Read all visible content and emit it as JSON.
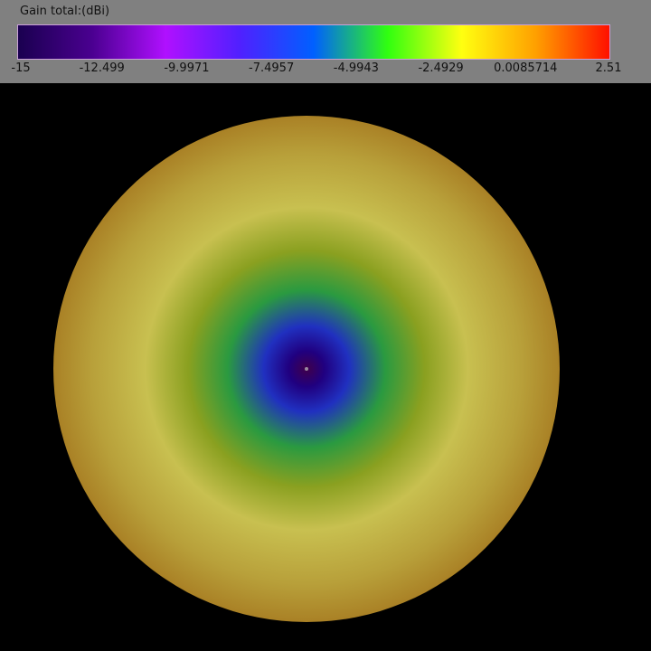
{
  "chart_data": {
    "type": "heatmap",
    "title": "Gain total:(dBi)",
    "colorbar": {
      "min": -15,
      "max": 2.51,
      "tick_labels": [
        "-15",
        "-12.499",
        "-9.9971",
        "-7.4957",
        "-4.9943",
        "-2.4929",
        "0.0085714",
        "2.51"
      ],
      "colors": [
        "#1a0050",
        "#4a0090",
        "#b010ff",
        "#5020ff",
        "#0060ff",
        "#30ff10",
        "#ffff10",
        "#ffa000",
        "#ff1000"
      ]
    },
    "pattern": {
      "shape": "circular gain map, minimum at center, maximum toward rim",
      "colors": [
        "#40004a",
        "#200080",
        "#2030c0",
        "#2a9a40",
        "#8aa020",
        "#c8c050",
        "#b8a03a",
        "#9a6010",
        "#7a2f08"
      ]
    }
  }
}
